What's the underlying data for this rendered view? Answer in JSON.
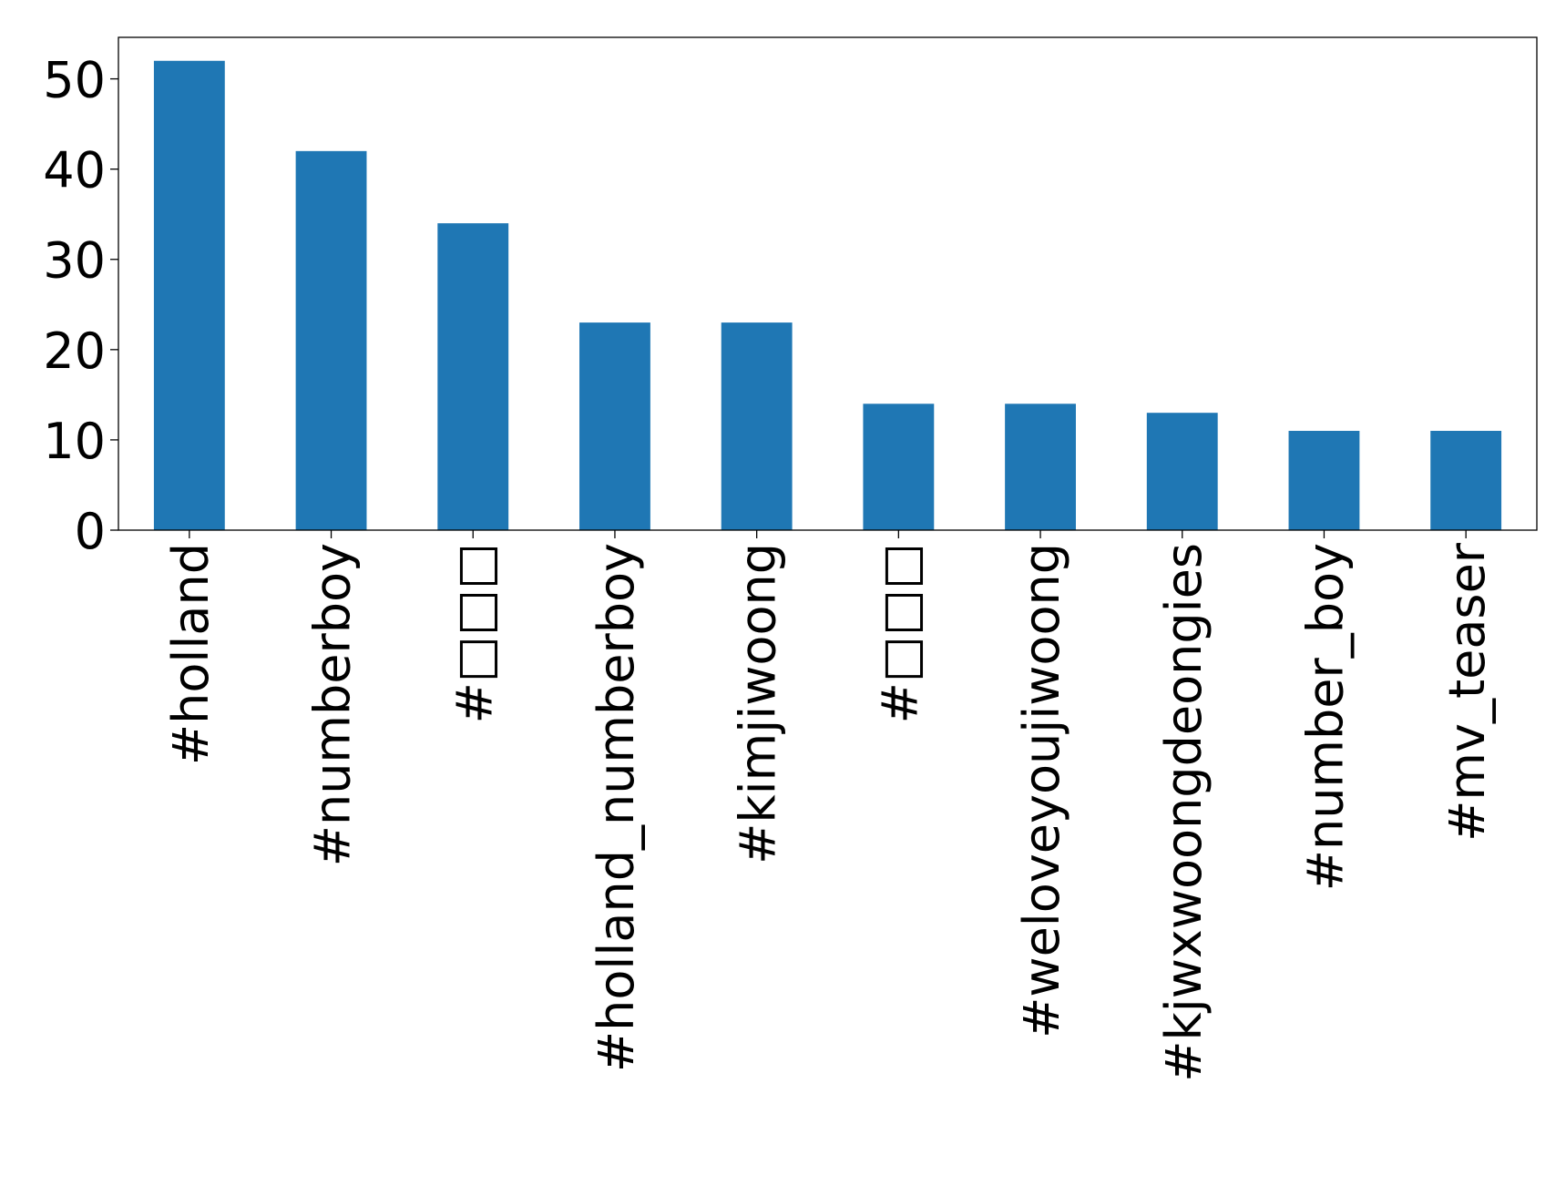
{
  "chart_data": {
    "type": "bar",
    "categories": [
      "#holland",
      "#numberboy",
      "#□□□",
      "#holland_numberboy",
      "#kimjiwoong",
      "#□□□",
      "#weloveyoujiwoong",
      "#kjwxwoongdeongies",
      "#number_boy",
      "#mv_teaser"
    ],
    "values": [
      52,
      42,
      34,
      23,
      23,
      14,
      14,
      13,
      11,
      11
    ],
    "color": "#1f77b4",
    "ylim": [
      0,
      54.6
    ],
    "yticks": [
      0,
      10,
      20,
      30,
      40,
      50
    ],
    "grid": false
  }
}
